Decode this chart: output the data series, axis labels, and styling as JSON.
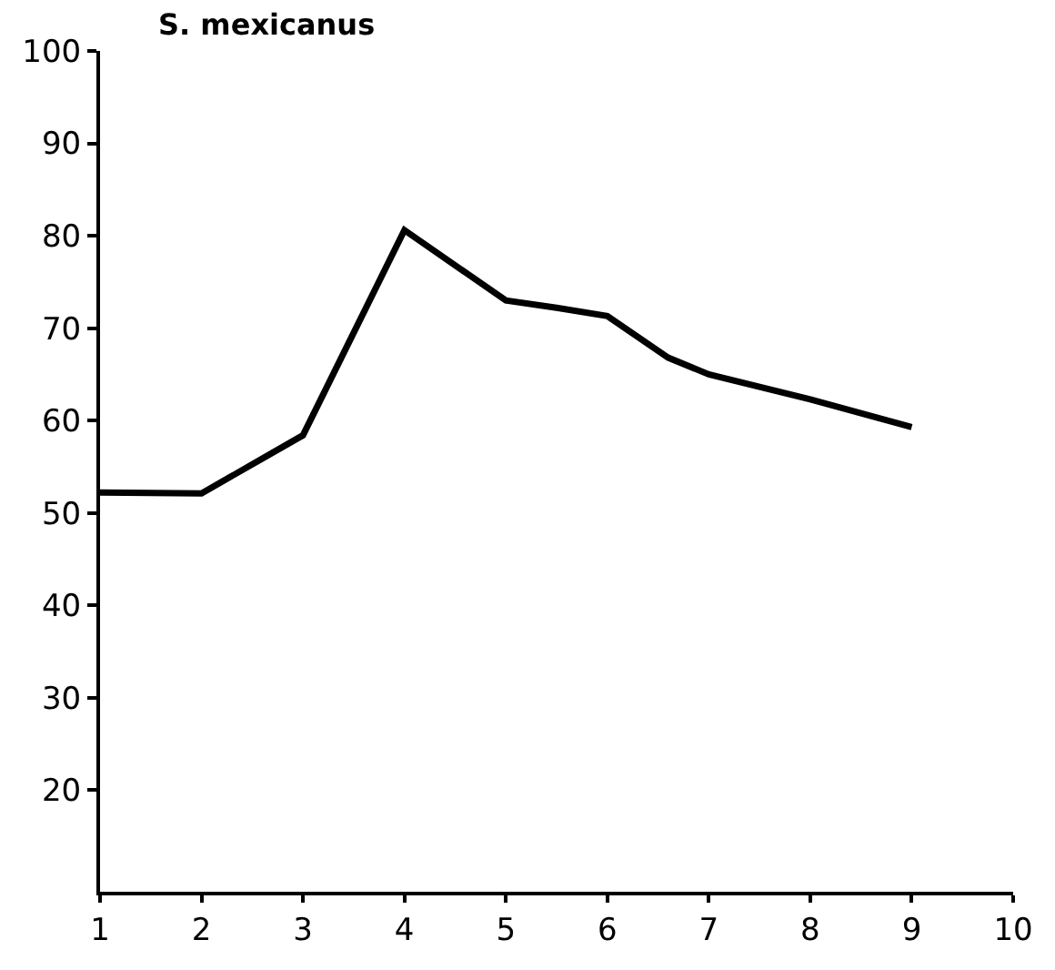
{
  "chart_data": {
    "type": "line",
    "title": "S. mexicanus",
    "x": [
      1,
      2,
      2.3,
      3,
      4,
      5,
      5.5,
      6,
      6.6,
      7,
      8,
      9
    ],
    "series": [
      {
        "color": "#000000",
        "values": [
          52.2,
          52.1,
          54,
          58.4,
          80.6,
          73,
          72.2,
          71.3,
          66.8,
          65,
          62.3,
          59.3
        ]
      }
    ],
    "xlim": [
      1,
      10
    ],
    "xticks": [
      1,
      2,
      3,
      4,
      5,
      6,
      7,
      8,
      9,
      10
    ],
    "ylim": [
      9,
      100
    ],
    "yticks": [
      20,
      30,
      40,
      50,
      60,
      70,
      80,
      90,
      100
    ],
    "marker": "none",
    "line_style": "solid"
  }
}
